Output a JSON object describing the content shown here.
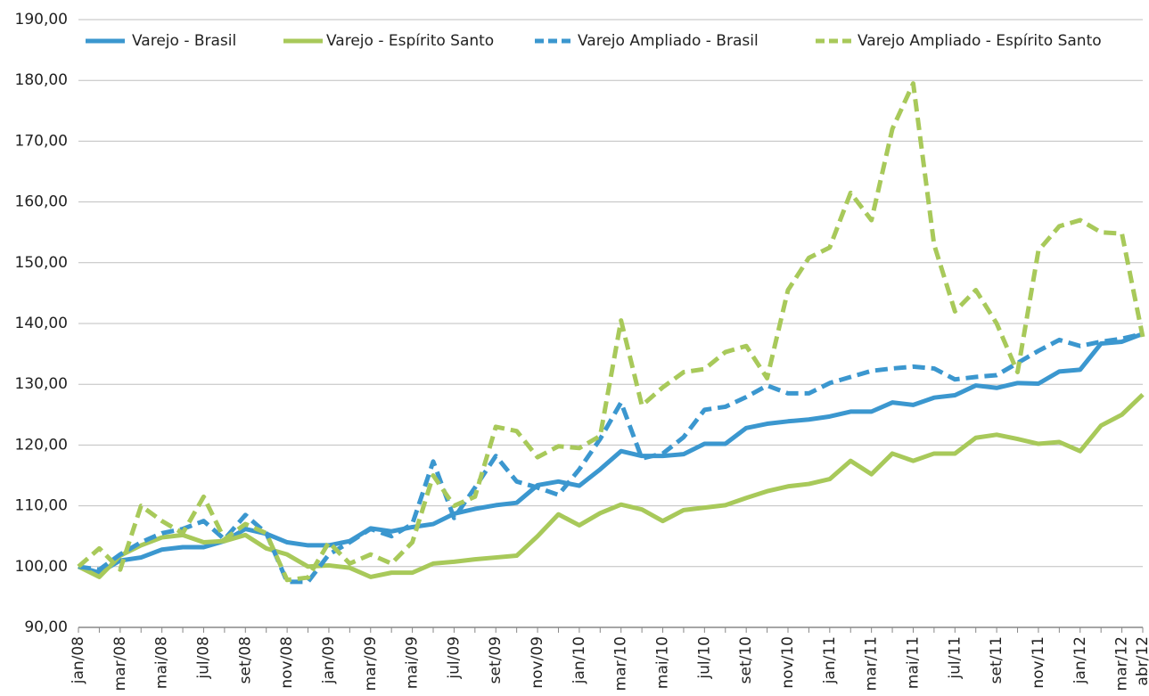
{
  "chart_data": {
    "type": "line",
    "categories": [
      "jan/08",
      null,
      "mar/08",
      null,
      "mai/08",
      null,
      "jul/08",
      null,
      "set/08",
      null,
      "nov/08",
      null,
      "jan/09",
      null,
      "mar/09",
      null,
      "mai/09",
      null,
      "jul/09",
      null,
      "set/09",
      null,
      "nov/09",
      null,
      "jan/10",
      null,
      "mar/10",
      null,
      "mai/10",
      null,
      "jul/10",
      null,
      "set/10",
      null,
      "nov/10",
      null,
      "jan/11",
      null,
      "mar/11",
      null,
      "mai/11",
      null,
      "jul/11",
      null,
      "set/11",
      null,
      "nov/11",
      null,
      "jan/12",
      null,
      "mar/12",
      "abr/12"
    ],
    "series": [
      {
        "name": "Varejo - Brasil",
        "color": "#3b97cf",
        "dashed": false,
        "values": [
          100,
          99,
          101,
          101.5,
          102.8,
          103.2,
          103.2,
          104.2,
          106.2,
          105.4,
          104,
          103.5,
          103.5,
          104.2,
          106.3,
          105.8,
          106.5,
          107,
          108.7,
          109.5,
          110.1,
          110.5,
          113.4,
          114,
          113.3,
          116,
          119,
          118.2,
          118.2,
          118.5,
          120.2,
          120.2,
          122.8,
          123.5,
          123.9,
          124.2,
          124.7,
          125.5,
          125.5,
          127,
          126.6,
          127.8,
          128.2,
          129.8,
          129.4,
          130.2,
          130.1,
          132.1,
          132.4,
          136.7,
          137,
          138.3
        ]
      },
      {
        "name": "Varejo - Espírito Santo",
        "color": "#a8c95a",
        "dashed": false,
        "values": [
          100,
          98.3,
          101.8,
          103.5,
          104.8,
          105.2,
          104,
          104.2,
          105.2,
          103,
          102,
          100,
          100.2,
          99.8,
          98.3,
          99,
          99,
          100.5,
          100.8,
          101.2,
          101.5,
          101.8,
          105,
          108.6,
          106.8,
          108.8,
          110.2,
          109.4,
          107.5,
          109.3,
          109.7,
          110.1,
          111.3,
          112.4,
          113.2,
          113.6,
          114.4,
          117.4,
          115.2,
          118.6,
          117.4,
          118.6,
          118.6,
          121.2,
          121.7,
          121,
          120.2,
          120.5,
          119,
          123.2,
          125,
          128.3
        ]
      },
      {
        "name": "Varejo Ampliado - Brasil",
        "color": "#3b97cf",
        "dashed": true,
        "values": [
          100,
          99.5,
          102,
          104,
          105.5,
          106.2,
          107.5,
          104.5,
          108.5,
          105.5,
          97.5,
          97.5,
          102,
          104,
          106.2,
          105,
          107,
          117.3,
          108,
          113,
          118.2,
          114,
          113,
          111.8,
          116,
          121,
          127,
          117.8,
          118.6,
          121.3,
          125.8,
          126.3,
          127.9,
          129.8,
          128.5,
          128.5,
          130.2,
          131.2,
          132.2,
          132.6,
          132.9,
          132.6,
          130.8,
          131.2,
          131.5,
          133.5,
          135.5,
          137.3,
          136.3,
          137,
          137.5,
          138.3
        ]
      },
      {
        "name": "Varejo Ampliado - Espírito Santo",
        "color": "#a8c95a",
        "dashed": true,
        "values": [
          100,
          103,
          99.5,
          110,
          107.5,
          105.5,
          111.5,
          104.5,
          107,
          105.5,
          97.8,
          98.2,
          104,
          100.5,
          102,
          100.5,
          104,
          115,
          110,
          111.5,
          123,
          122.3,
          118,
          119.8,
          119.5,
          121.5,
          140.5,
          126.5,
          129.5,
          132,
          132.5,
          135.3,
          136.3,
          131,
          145.5,
          150.8,
          152.5,
          161.5,
          157,
          172,
          179.5,
          153,
          142,
          145.5,
          140,
          132,
          152,
          156,
          157,
          155,
          154.8,
          137.8
        ]
      }
    ],
    "ylim": [
      90,
      190
    ],
    "yticks": [
      {
        "value": 90,
        "label": "90,00"
      },
      {
        "value": 100,
        "label": "100,00"
      },
      {
        "value": 110,
        "label": "110,00"
      },
      {
        "value": 120,
        "label": "120,00"
      },
      {
        "value": 130,
        "label": "130,00"
      },
      {
        "value": 140,
        "label": "140,00"
      },
      {
        "value": 150,
        "label": "150,00"
      },
      {
        "value": 160,
        "label": "160,00"
      },
      {
        "value": 170,
        "label": "170,00"
      },
      {
        "value": 180,
        "label": "180,00"
      },
      {
        "value": 190,
        "label": "190,00"
      }
    ],
    "grid": true,
    "legend": "top"
  }
}
